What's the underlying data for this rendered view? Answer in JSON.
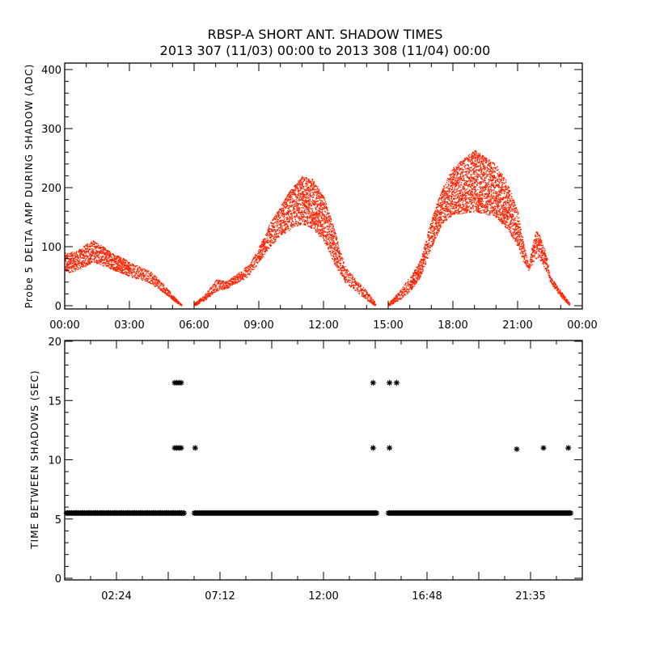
{
  "title": "RBSP-A SHORT ANT. SHADOW TIMES",
  "subtitle": "2013 307 (11/03) 00:00 to 2013 308 (11/04) 00:00",
  "chart_data": [
    {
      "type": "scatter",
      "ylabel": "Probe 5 DELTA AMP DURING SHADOW (ADC)",
      "xlabel": "",
      "xlim_hours": [
        0,
        24
      ],
      "ylim": [
        0,
        410
      ],
      "color": "#ff2200",
      "x_tick_labels": [
        "00:00",
        "03:00",
        "06:00",
        "09:00",
        "12:00",
        "15:00",
        "18:00",
        "21:00",
        "00:00"
      ],
      "x_tick_hours": [
        0,
        3,
        6,
        9,
        12,
        15,
        18,
        21,
        24
      ],
      "y_tick_labels": [
        "0",
        "100",
        "200",
        "300",
        "400"
      ],
      "y_tick_values": [
        0,
        100,
        200,
        300,
        400
      ],
      "bands": [
        {
          "t": [
            0,
            0.5,
            1,
            1.3,
            2,
            3,
            4,
            4.5,
            5,
            5.4
          ],
          "low": [
            55,
            60,
            68,
            75,
            65,
            50,
            38,
            25,
            10,
            0
          ],
          "high": [
            90,
            92,
            105,
            112,
            95,
            75,
            58,
            40,
            18,
            3
          ]
        },
        {
          "t": [
            6,
            6.5,
            7,
            7.5,
            8,
            8.5,
            9,
            9.5,
            10,
            10.5,
            11,
            11.5,
            12,
            12.5,
            13,
            13.5,
            14,
            14.4
          ],
          "low": [
            0,
            10,
            25,
            30,
            40,
            50,
            75,
            100,
            120,
            130,
            140,
            130,
            110,
            70,
            40,
            25,
            10,
            0
          ],
          "high": [
            5,
            20,
            45,
            42,
            55,
            70,
            100,
            140,
            170,
            200,
            220,
            215,
            185,
            130,
            65,
            45,
            25,
            5
          ]
        },
        {
          "t": [
            15,
            15.5,
            16,
            16.5,
            17,
            17.5,
            18,
            19,
            20,
            20.5,
            21,
            21.3,
            21.5,
            21.8,
            22,
            22.3,
            22.5,
            23,
            23.4
          ],
          "low": [
            0,
            10,
            25,
            50,
            100,
            140,
            155,
            160,
            150,
            130,
            100,
            70,
            60,
            80,
            80,
            60,
            40,
            15,
            0
          ],
          "high": [
            5,
            25,
            50,
            80,
            150,
            200,
            235,
            265,
            240,
            210,
            160,
            100,
            70,
            130,
            120,
            90,
            50,
            25,
            5
          ]
        }
      ]
    },
    {
      "type": "scatter",
      "ylabel": "TIME BETWEEN SHADOWS (SEC)",
      "xlabel": "",
      "xlim_hours": [
        0,
        24
      ],
      "ylim": [
        0,
        20
      ],
      "color": "#000000",
      "x_tick_labels": [
        "02:24",
        "07:12",
        "12:00",
        "16:48",
        "21:35"
      ],
      "x_tick_hours": [
        2.4,
        7.2,
        12,
        16.8,
        21.6
      ],
      "y_tick_labels": [
        "0",
        "5",
        "10",
        "15",
        "20"
      ],
      "y_tick_values": [
        0,
        5,
        10,
        15,
        20
      ],
      "continuous_segments": [
        {
          "value": 5.5,
          "start": 0.0,
          "end": 5.5
        },
        {
          "value": 5.5,
          "start": 5.93,
          "end": 14.43
        },
        {
          "value": 5.5,
          "start": 14.93,
          "end": 23.43
        }
      ],
      "points": [
        {
          "t": 5.1,
          "v": 16.5
        },
        {
          "t": 5.2,
          "v": 16.5
        },
        {
          "t": 5.3,
          "v": 16.5
        },
        {
          "t": 5.4,
          "v": 16.5
        },
        {
          "t": 14.3,
          "v": 16.5
        },
        {
          "t": 15.06,
          "v": 16.5
        },
        {
          "t": 15.39,
          "v": 16.5
        },
        {
          "t": 5.1,
          "v": 11
        },
        {
          "t": 5.2,
          "v": 11
        },
        {
          "t": 5.3,
          "v": 11
        },
        {
          "t": 5.4,
          "v": 11
        },
        {
          "t": 6.05,
          "v": 11
        },
        {
          "t": 14.3,
          "v": 11
        },
        {
          "t": 15.06,
          "v": 11
        },
        {
          "t": 20.96,
          "v": 10.9
        },
        {
          "t": 22.2,
          "v": 11
        },
        {
          "t": 23.35,
          "v": 11
        }
      ]
    }
  ]
}
